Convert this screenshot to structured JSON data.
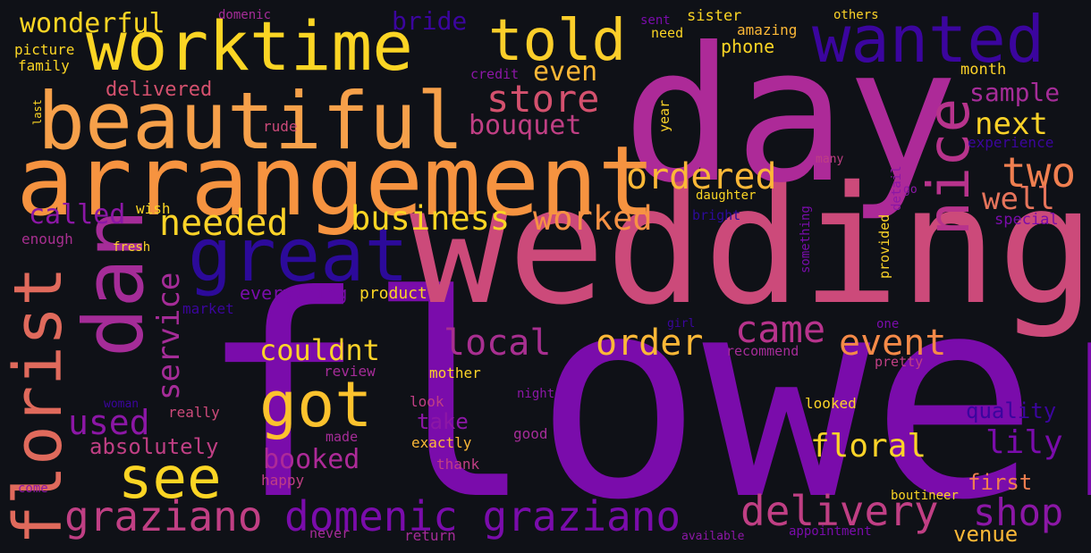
{
  "words": [
    {
      "text": "flower",
      "color": "#7a0cab"
    },
    {
      "text": "wedding",
      "color": "#cc4a7a"
    },
    {
      "text": "day",
      "color": "#ad2a98"
    },
    {
      "text": "arrangement",
      "color": "#f69340"
    },
    {
      "text": "beautiful",
      "color": "#f6a04a"
    },
    {
      "text": "worktime",
      "color": "#fbd524"
    },
    {
      "text": "told",
      "color": "#fbce2a"
    },
    {
      "text": "wanted",
      "color": "#3b059e"
    },
    {
      "text": "dan",
      "color": "#a52c98"
    },
    {
      "text": "great",
      "color": "#2c0a9a"
    },
    {
      "text": "florist",
      "color": "#e06a5c"
    },
    {
      "text": "nice",
      "color": "#b7338c"
    },
    {
      "text": "got",
      "color": "#fcc22d"
    },
    {
      "text": "see",
      "color": "#fbd524"
    },
    {
      "text": "graziano",
      "color": "#c03f84"
    },
    {
      "text": "domenic graziano",
      "color": "#7a0cab"
    },
    {
      "text": "delivery",
      "color": "#c03f84"
    },
    {
      "text": "shop",
      "color": "#8c17a6"
    },
    {
      "text": "store",
      "color": "#d4516e"
    },
    {
      "text": "ordered",
      "color": "#fcb837"
    },
    {
      "text": "business",
      "color": "#fbd524"
    },
    {
      "text": "worked",
      "color": "#f79244"
    },
    {
      "text": "needed",
      "color": "#fcd328"
    },
    {
      "text": "called",
      "color": "#8c17a6"
    },
    {
      "text": "service",
      "color": "#a52c98"
    },
    {
      "text": "two",
      "color": "#f07f50"
    },
    {
      "text": "next",
      "color": "#fcd328"
    },
    {
      "text": "well",
      "color": "#e6745b"
    },
    {
      "text": "local",
      "color": "#a82f90"
    },
    {
      "text": "order",
      "color": "#fcb837"
    },
    {
      "text": "came",
      "color": "#b7338c"
    },
    {
      "text": "event",
      "color": "#f58a48"
    },
    {
      "text": "couldnt",
      "color": "#fcd328"
    },
    {
      "text": "used",
      "color": "#8c17a6"
    },
    {
      "text": "booked",
      "color": "#ad2a98"
    },
    {
      "text": "floral",
      "color": "#fcd328"
    },
    {
      "text": "lily",
      "color": "#7a0cab"
    },
    {
      "text": "even",
      "color": "#fcb837"
    },
    {
      "text": "bouquet",
      "color": "#c03f84"
    },
    {
      "text": "sample",
      "color": "#a52c98"
    },
    {
      "text": "bride",
      "color": "#3b059e"
    },
    {
      "text": "wonderful",
      "color": "#fbd524"
    },
    {
      "text": "delivered",
      "color": "#d4516e"
    },
    {
      "text": "absolutely",
      "color": "#c03f84"
    },
    {
      "text": "take",
      "color": "#8c17a6"
    },
    {
      "text": "quality",
      "color": "#3b059e"
    },
    {
      "text": "first",
      "color": "#f07f50"
    },
    {
      "text": "venue",
      "color": "#fcb837"
    },
    {
      "text": "everything",
      "color": "#7a0cab"
    },
    {
      "text": "product",
      "color": "#fbd524"
    },
    {
      "text": "phone",
      "color": "#fbd524"
    },
    {
      "text": "month",
      "color": "#fcd328"
    },
    {
      "text": "experience",
      "color": "#3b059e"
    },
    {
      "text": "special",
      "color": "#7a0cab"
    },
    {
      "text": "enough",
      "color": "#a82f90"
    },
    {
      "text": "wish",
      "color": "#fbd524"
    },
    {
      "text": "fresh",
      "color": "#fcd328"
    },
    {
      "text": "market",
      "color": "#3b059e"
    },
    {
      "text": "rude",
      "color": "#cc4a7a"
    },
    {
      "text": "credit",
      "color": "#8c17a6"
    },
    {
      "text": "picture",
      "color": "#fbd524"
    },
    {
      "text": "family",
      "color": "#fbd524"
    },
    {
      "text": "domenic",
      "color": "#a52c98"
    },
    {
      "text": "sent",
      "color": "#7a0cab"
    },
    {
      "text": "sister",
      "color": "#fbd524"
    },
    {
      "text": "others",
      "color": "#fcd328"
    },
    {
      "text": "need",
      "color": "#fbd524"
    },
    {
      "text": "amazing",
      "color": "#fcb837"
    },
    {
      "text": "year",
      "color": "#fcd328"
    },
    {
      "text": "many",
      "color": "#c03f84"
    },
    {
      "text": "daughter",
      "color": "#fbd524"
    },
    {
      "text": "bright",
      "color": "#2c0a9a"
    },
    {
      "text": "something",
      "color": "#7a0cab"
    },
    {
      "text": "provided",
      "color": "#fcd328"
    },
    {
      "text": "detail",
      "color": "#8c17a6"
    },
    {
      "text": "go",
      "color": "#8c17a6"
    },
    {
      "text": "last",
      "color": "#fbd524"
    },
    {
      "text": "recommend",
      "color": "#a52c98"
    },
    {
      "text": "pretty",
      "color": "#c03f84"
    },
    {
      "text": "one",
      "color": "#7a0cab"
    },
    {
      "text": "girl",
      "color": "#3b059e"
    },
    {
      "text": "review",
      "color": "#a52c98"
    },
    {
      "text": "mother",
      "color": "#fcd328"
    },
    {
      "text": "night",
      "color": "#8c17a6"
    },
    {
      "text": "look",
      "color": "#c03f84"
    },
    {
      "text": "looked",
      "color": "#fcd328"
    },
    {
      "text": "woman",
      "color": "#3b059e"
    },
    {
      "text": "really",
      "color": "#cc4a7a"
    },
    {
      "text": "made",
      "color": "#a52c98"
    },
    {
      "text": "exactly",
      "color": "#fcb837"
    },
    {
      "text": "good",
      "color": "#a52c98"
    },
    {
      "text": "thank",
      "color": "#c03f84"
    },
    {
      "text": "happy",
      "color": "#c03f84"
    },
    {
      "text": "come",
      "color": "#8c17a6"
    },
    {
      "text": "never",
      "color": "#a52c98"
    },
    {
      "text": "return",
      "color": "#a52c98"
    },
    {
      "text": "available",
      "color": "#8c17a6"
    },
    {
      "text": "appointment",
      "color": "#7a0cab"
    },
    {
      "text": "boutineer",
      "color": "#fbd524"
    }
  ]
}
